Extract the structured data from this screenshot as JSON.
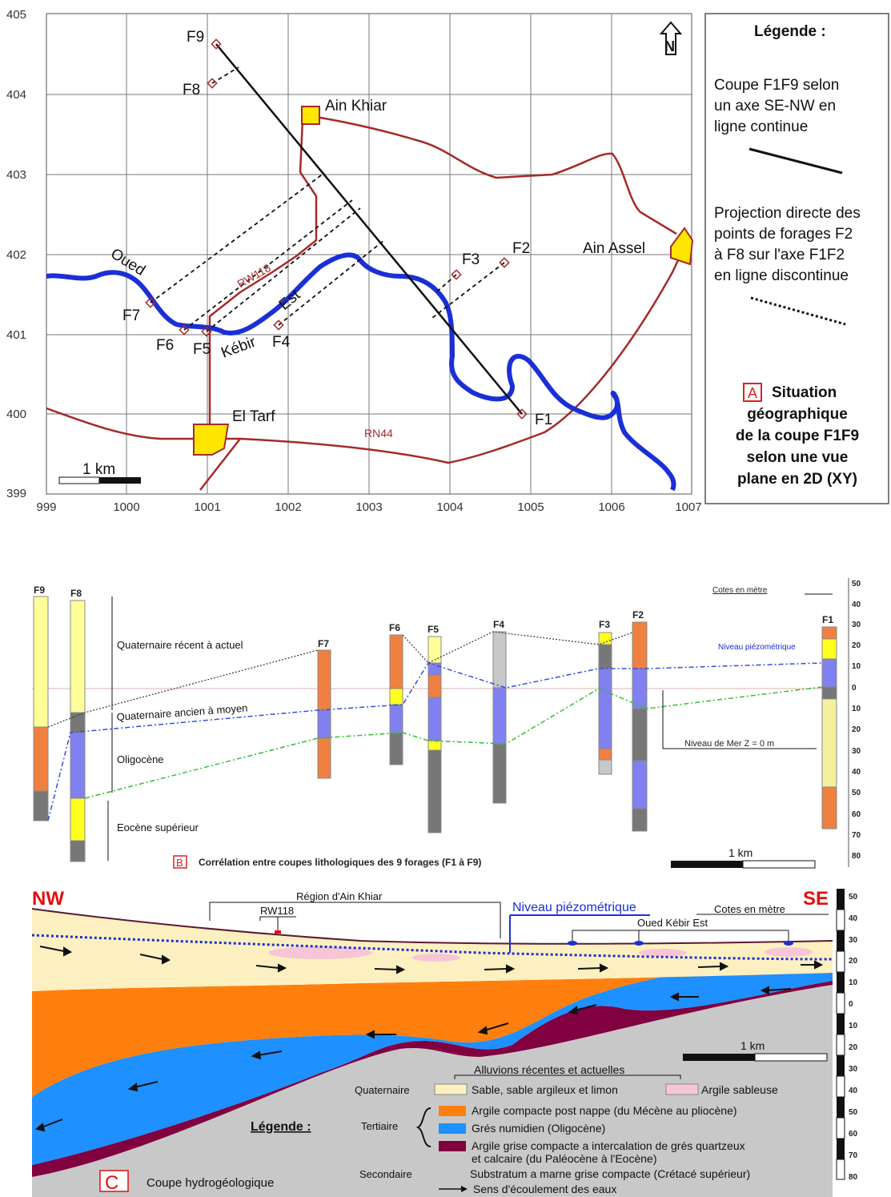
{
  "panelA": {
    "y_ticks": [
      "405",
      "404",
      "403",
      "402",
      "401",
      "400",
      "399"
    ],
    "x_ticks": [
      "999",
      "1000",
      "1001",
      "1002",
      "1003",
      "1004",
      "1005",
      "1006",
      "1007"
    ],
    "wells": [
      "F9",
      "F8",
      "F7",
      "F6",
      "F5",
      "F4",
      "F3",
      "F2",
      "F1"
    ],
    "places": {
      "ain_khiar": "Ain Khiar",
      "ain_assel": "Ain Assel",
      "el_tarf": "El Tarf"
    },
    "river_words": [
      "Oued",
      "Est",
      "Kébir"
    ],
    "roads": {
      "rw": "RW118",
      "rn": "RN44"
    },
    "north": "N",
    "scale": "1 km",
    "legend": {
      "title": "Légende :",
      "line1": [
        "Coupe F1F9 selon",
        "un axe SE-NW en",
        "ligne continue"
      ],
      "line2": [
        "Projection directe des",
        "points de forages F2",
        "à F8 sur l'axe F1F2",
        "en ligne discontinue"
      ],
      "letter": "A",
      "caption": [
        "Situation",
        "géographique",
        "de la coupe F1F9",
        "selon une vue",
        "plane en 2D (XY)"
      ]
    },
    "colors": {
      "river": "#1a2fd6",
      "road": "#a52a2a",
      "town": "#ffe600"
    }
  },
  "panelB": {
    "wells": [
      "F9",
      "F8",
      "F7",
      "F6",
      "F5",
      "F4",
      "F3",
      "F2",
      "F1"
    ],
    "cotes": "Cotes en mètre",
    "niveau_piezo": "Niveau piézométrique",
    "niveau_mer": "Niveau de Mer  Z = 0 m",
    "units": [
      "Quaternaire récent à actuel",
      "Quaternaire  ancien à moyen",
      "Oligocène",
      "Eocène supérieur"
    ],
    "scale": "1 km",
    "letter": "B",
    "caption": "Corrélation entre coupes lithologiques des 9 forages (F1 à F9)",
    "axis": [
      "50",
      "40",
      "30",
      "20",
      "10",
      "0",
      "10",
      "20",
      "30",
      "40",
      "50",
      "60",
      "70",
      "80"
    ]
  },
  "panelC": {
    "nw": "NW",
    "se": "SE",
    "region": "Région d'Ain Khiar",
    "rw": "RW118",
    "niveau_piezo": "Niveau piézométrique",
    "cotes": "Cotes en mètre",
    "oued": "Oued Kébir Est",
    "scale": "1 km",
    "axis": [
      "50",
      "40",
      "30",
      "20",
      "10",
      "0",
      "10",
      "20",
      "30",
      "40",
      "50",
      "60",
      "70",
      "80"
    ],
    "legend": {
      "title": "Légende :",
      "alluvions": "Alluvions récentes et actuelles",
      "quaternaire": "Quaternaire",
      "sable": "Sable, sable argileux et limon",
      "argile_sab": "Argile sableuse",
      "tertiaire": "Tertiaire",
      "arg_compacte": "Argile compacte post nappe (du Mécène au pliocène)",
      "gres": "Grés numidien (Oligocène)",
      "arg_grise1": "Argile grise compacte a intercalation de grés quartzeux",
      "arg_grise2": "et calcaire (du Paléocène à l'Eocène)",
      "secondaire": "Secondaire",
      "substratum": "Substratum a marne grise compacte (Crétacé supérieur)",
      "sens": "Sens d'écoulement des eaux"
    },
    "letter": "C",
    "caption": "Coupe hydrogéologique",
    "colors": {
      "sable": "#fdf0c0",
      "argile_sab": "#f7c6d6",
      "orange": "#ff7f0e",
      "blue": "#1e90ff",
      "maroon": "#800040",
      "grey": "#c8c8c8"
    }
  }
}
